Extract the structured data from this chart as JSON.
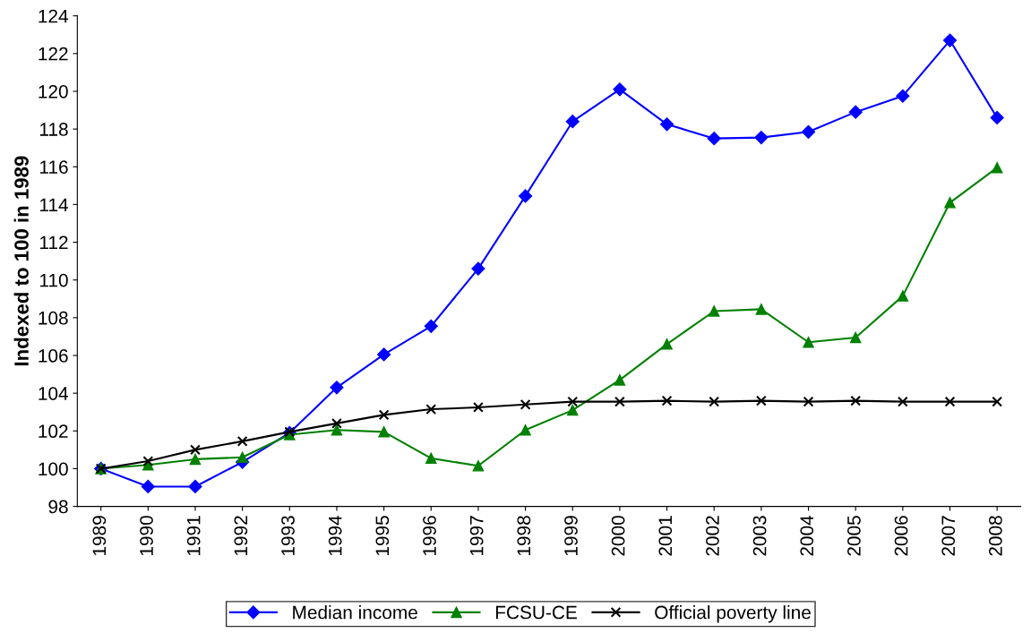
{
  "chart_data": {
    "type": "line",
    "ylabel": "Indexed to 100 in 1989",
    "categories": [
      "1989",
      "1990",
      "1991",
      "1992",
      "1993",
      "1994",
      "1995",
      "1996",
      "1997",
      "1998",
      "1999",
      "2000",
      "2001",
      "2002",
      "2003",
      "2004",
      "2005",
      "2006",
      "2007",
      "2008"
    ],
    "series": [
      {
        "name": "Median income",
        "color": "#0000ff",
        "marker": "diamond",
        "values": [
          100,
          99.05,
          99.05,
          100.35,
          101.9,
          104.3,
          106.05,
          107.55,
          110.6,
          114.45,
          118.4,
          120.1,
          118.25,
          117.5,
          117.55,
          117.85,
          118.9,
          119.75,
          122.7,
          118.6
        ]
      },
      {
        "name": "FCSU-CE",
        "color": "#008000",
        "marker": "triangle",
        "values": [
          100,
          100.2,
          100.5,
          100.6,
          101.8,
          102.05,
          101.95,
          100.55,
          100.15,
          102.05,
          103.1,
          104.7,
          106.6,
          108.35,
          108.45,
          106.7,
          106.95,
          109.15,
          114.1,
          115.95
        ]
      },
      {
        "name": "Official poverty line",
        "color": "#000000",
        "marker": "cross",
        "values": [
          100,
          100.4,
          101.0,
          101.45,
          101.95,
          102.4,
          102.85,
          103.15,
          103.25,
          103.4,
          103.55,
          103.55,
          103.6,
          103.55,
          103.6,
          103.55,
          103.6,
          103.55,
          103.55,
          103.55
        ]
      }
    ],
    "ylim": [
      98,
      124
    ],
    "yticks": [
      98,
      100,
      102,
      104,
      106,
      108,
      110,
      112,
      114,
      116,
      118,
      120,
      122,
      124
    ],
    "grid": false,
    "legend": "bottom",
    "line_style": "solid"
  }
}
